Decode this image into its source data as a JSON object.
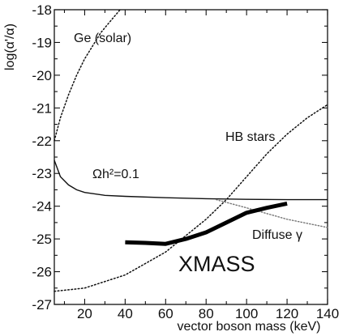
{
  "chart_data": {
    "type": "line",
    "title": "",
    "xlabel": "vector boson mass (keV)",
    "ylabel": "log(α'/α)",
    "xlim": [
      5,
      140
    ],
    "ylim": [
      -27,
      -18
    ],
    "xticks": [
      20,
      40,
      60,
      80,
      100,
      120,
      140
    ],
    "yticks": [
      -27,
      -26,
      -25,
      -24,
      -23,
      -22,
      -21,
      -20,
      -19,
      -18
    ],
    "grid": false,
    "legend": "none",
    "series": [
      {
        "name": "Ge (solar)",
        "style": "dotted",
        "x": [
          5,
          8,
          12,
          16,
          20,
          24,
          28,
          32,
          37.5
        ],
        "y": [
          -22.0,
          -21.3,
          -20.6,
          -20.0,
          -19.5,
          -19.1,
          -18.7,
          -18.4,
          -18.0
        ]
      },
      {
        "name": "HB stars",
        "style": "dotted",
        "x": [
          5,
          20,
          40,
          60,
          80,
          90,
          100,
          110,
          120,
          130,
          140
        ],
        "y": [
          -26.6,
          -26.5,
          -26.1,
          -25.4,
          -24.4,
          -23.8,
          -23.1,
          -22.4,
          -21.8,
          -21.3,
          -20.9
        ]
      },
      {
        "name": "Ωh²=0.1",
        "style": "solid",
        "x": [
          5,
          8,
          12,
          16,
          20,
          30,
          40,
          60,
          80,
          100,
          120,
          140
        ],
        "y": [
          -22.6,
          -23.1,
          -23.35,
          -23.5,
          -23.58,
          -23.67,
          -23.7,
          -23.74,
          -23.77,
          -23.79,
          -23.8,
          -23.8
        ]
      },
      {
        "name": "Diffuse γ",
        "style": "dotted-gray",
        "x": [
          85,
          100,
          120,
          140
        ],
        "y": [
          -23.8,
          -24.05,
          -24.4,
          -24.65
        ]
      },
      {
        "name": "XMASS",
        "style": "thick",
        "x": [
          40,
          50,
          60,
          70,
          80,
          90,
          100,
          110,
          120
        ],
        "y": [
          -25.1,
          -25.12,
          -25.15,
          -25.0,
          -24.8,
          -24.5,
          -24.2,
          -24.05,
          -23.92
        ]
      }
    ],
    "annotations": {
      "ge_solar": "Ge (solar)",
      "hb_stars": "HB stars",
      "omega": "Ωh²=0.1",
      "diffuse": "Diffuse γ",
      "xmass": "XMASS"
    }
  }
}
